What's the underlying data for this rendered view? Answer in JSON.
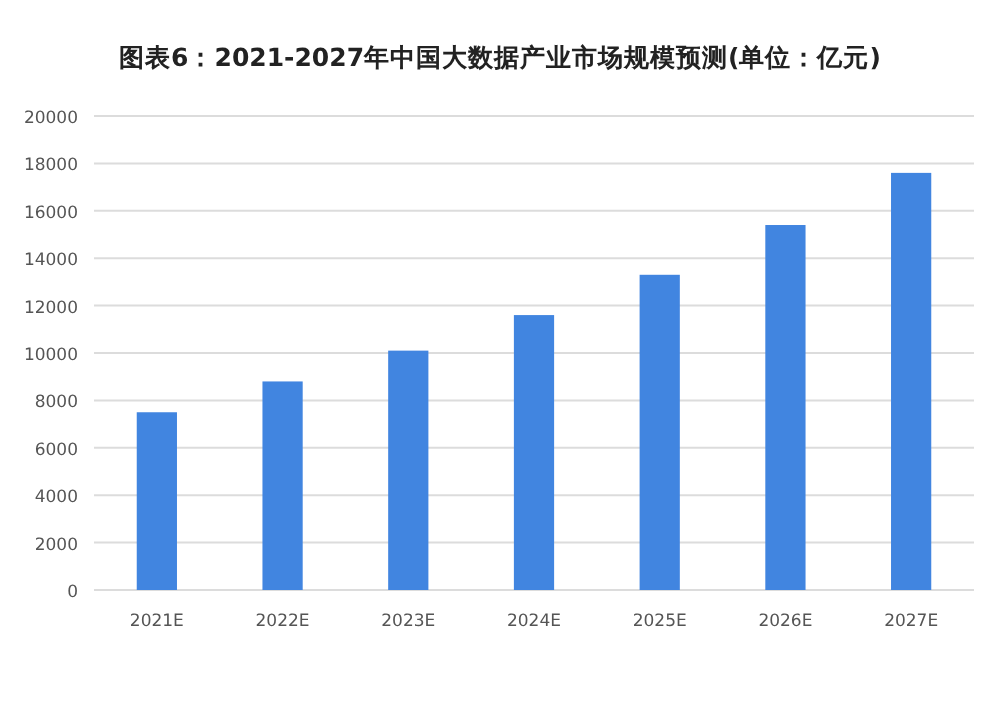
{
  "chart_data": {
    "type": "bar",
    "title": "图表6：2021-2027年中国大数据产业市场规模预测(单位：亿元)",
    "categories": [
      "2021E",
      "2022E",
      "2023E",
      "2024E",
      "2025E",
      "2026E",
      "2027E"
    ],
    "values": [
      7500,
      8800,
      10100,
      11600,
      13300,
      15400,
      17600
    ],
    "color": "#4185e0",
    "ylim": [
      0,
      20000
    ],
    "yticks": [
      0,
      2000,
      4000,
      6000,
      8000,
      10000,
      12000,
      14000,
      16000,
      18000,
      20000
    ],
    "grid": "y"
  }
}
